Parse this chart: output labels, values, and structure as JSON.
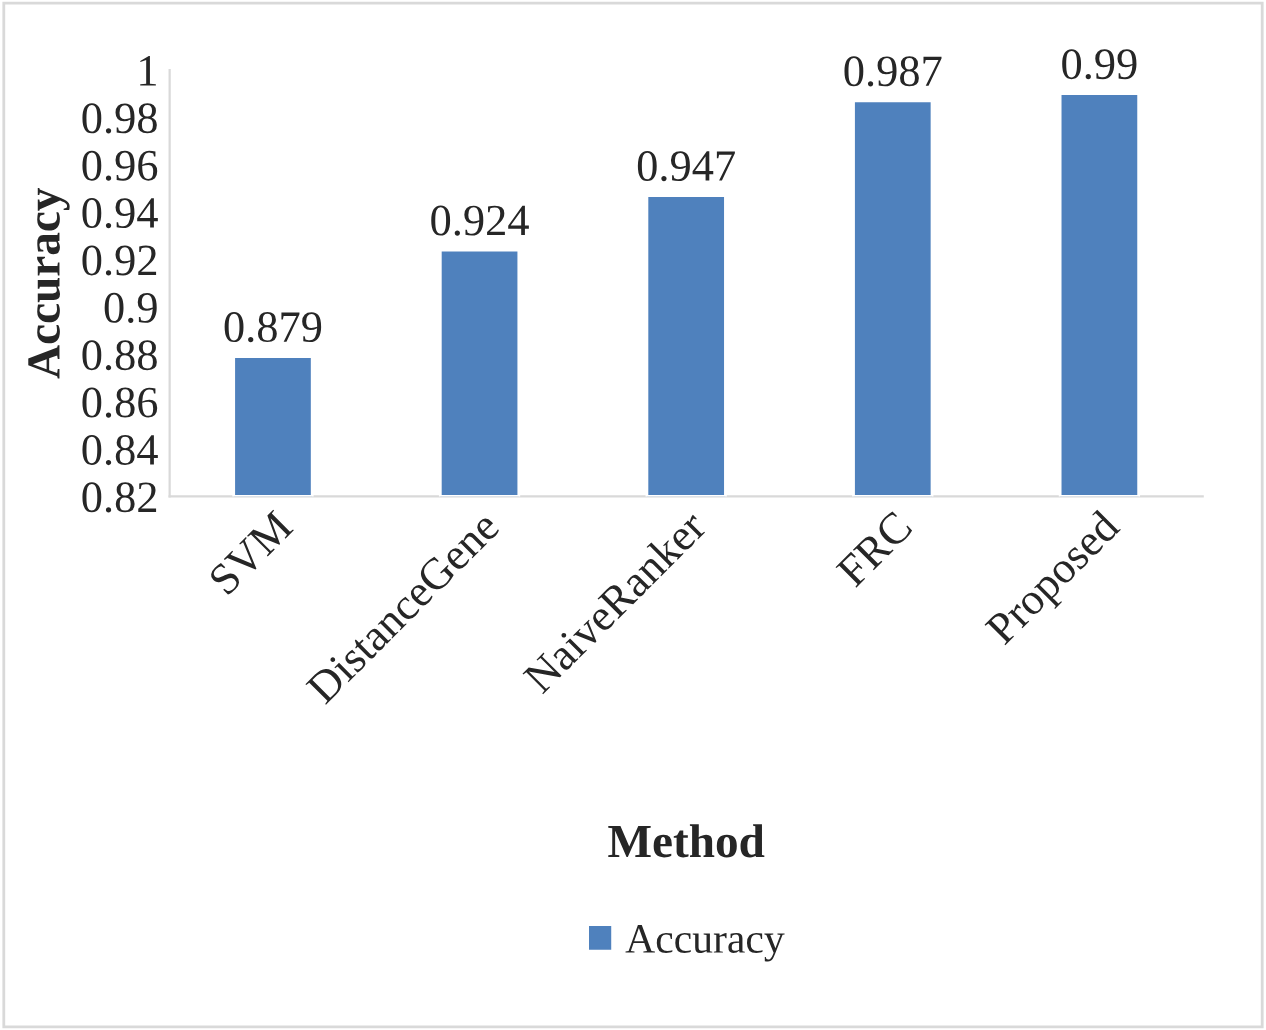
{
  "chart_data": {
    "type": "bar",
    "xlabel": "Method",
    "ylabel": "Accuracy",
    "categories": [
      "SVM",
      "DistanceGene",
      "NaiveRanker",
      "FRC",
      "Proposed"
    ],
    "series": [
      {
        "name": "Accuracy",
        "color": "#4f81bd",
        "values": [
          0.879,
          0.924,
          0.947,
          0.987,
          0.99
        ]
      }
    ],
    "ylim": [
      0.82,
      1
    ],
    "yticks": [
      0.82,
      0.84,
      0.86,
      0.88,
      0.9,
      0.92,
      0.94,
      0.96,
      0.98,
      1
    ],
    "data_labels": true,
    "legend": "bottom",
    "grid": false
  }
}
